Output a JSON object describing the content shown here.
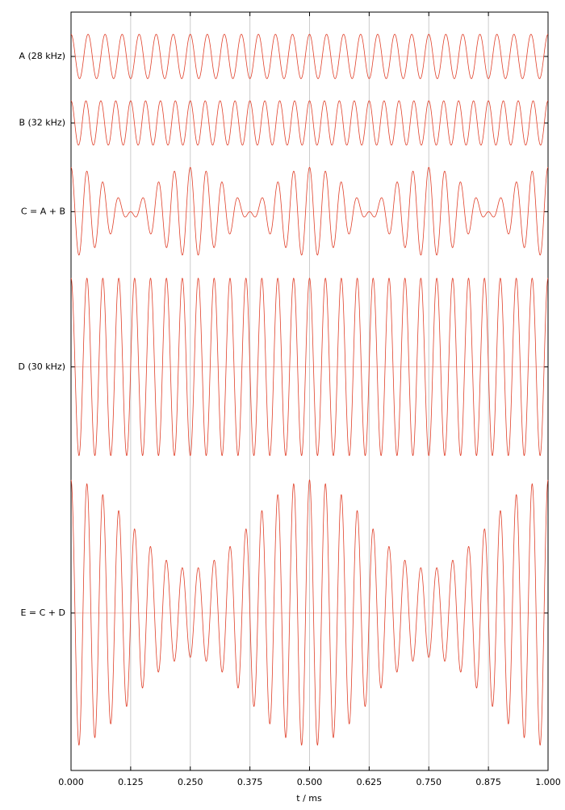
{
  "chart_data": {
    "type": "line",
    "xlabel": "t / ms",
    "xlim": [
      0,
      1
    ],
    "xticks": [
      {
        "value": 0,
        "label": "0.000"
      },
      {
        "value": 0.125,
        "label": "0.125"
      },
      {
        "value": 0.25,
        "label": "0.250"
      },
      {
        "value": 0.375,
        "label": "0.375"
      },
      {
        "value": 0.5,
        "label": "0.500"
      },
      {
        "value": 0.625,
        "label": "0.625"
      },
      {
        "value": 0.75,
        "label": "0.750"
      },
      {
        "value": 0.875,
        "label": "0.875"
      },
      {
        "value": 1,
        "label": "1.000"
      }
    ],
    "ylim": [
      0,
      34.2
    ],
    "yticks": [
      {
        "value": 32.2,
        "label": "A (28 kHz)"
      },
      {
        "value": 29.2,
        "label": "B (32 kHz)"
      },
      {
        "value": 25.2,
        "label": "C = A + B"
      },
      {
        "value": 18.2,
        "label": "D (30 kHz)"
      },
      {
        "value": 7.1,
        "label": "E = C + D"
      }
    ],
    "grid": true,
    "color": "#e0402a",
    "series": [
      {
        "frequency": 28,
        "amplitude": 1,
        "offset": 32.2
      },
      {
        "frequency": 32,
        "amplitude": 1,
        "offset": 29.2
      },
      {
        "terms": [
          0,
          1
        ],
        "offset": 25.2
      },
      {
        "frequency": 30,
        "amplitude": 4,
        "offset": 18.2
      },
      {
        "terms": [
          2,
          3
        ],
        "offset": 7.1
      }
    ]
  }
}
